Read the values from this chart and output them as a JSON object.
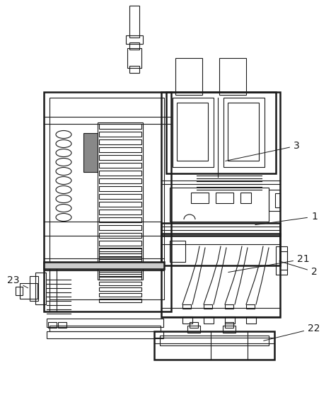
{
  "bg_color": "#ffffff",
  "lc": "#1a1a1a",
  "lw": 0.8,
  "tlw": 1.8,
  "fig_w": 4.68,
  "fig_h": 5.82,
  "dpi": 100,
  "ann_color": "#1a1a1a",
  "ann_fs": 10
}
